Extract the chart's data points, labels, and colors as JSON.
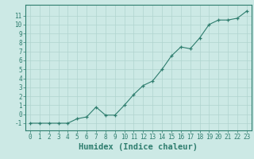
{
  "x": [
    0,
    1,
    2,
    3,
    4,
    5,
    6,
    7,
    8,
    9,
    10,
    11,
    12,
    13,
    14,
    15,
    16,
    17,
    18,
    19,
    20,
    21,
    22,
    23
  ],
  "y": [
    -1,
    -1,
    -1,
    -1,
    -1,
    -0.5,
    -0.3,
    0.8,
    -0.1,
    -0.1,
    1,
    2.2,
    3.2,
    3.7,
    5,
    6.5,
    7.5,
    7.3,
    8.5,
    10,
    10.5,
    10.5,
    10.7,
    11.5
  ],
  "line_color": "#2e7d6e",
  "marker_color": "#2e7d6e",
  "bg_color": "#cce9e5",
  "grid_color": "#b0d4cf",
  "xlabel": "Humidex (Indice chaleur)",
  "xlim": [
    -0.5,
    23.5
  ],
  "ylim": [
    -1.8,
    12.2
  ],
  "yticks": [
    -1,
    0,
    1,
    2,
    3,
    4,
    5,
    6,
    7,
    8,
    9,
    10,
    11
  ],
  "xticks": [
    0,
    1,
    2,
    3,
    4,
    5,
    6,
    7,
    8,
    9,
    10,
    11,
    12,
    13,
    14,
    15,
    16,
    17,
    18,
    19,
    20,
    21,
    22,
    23
  ],
  "tick_color": "#2e7d6e",
  "font_color": "#2e7d6e",
  "font_size": 5.5,
  "xlabel_fontsize": 7.5
}
